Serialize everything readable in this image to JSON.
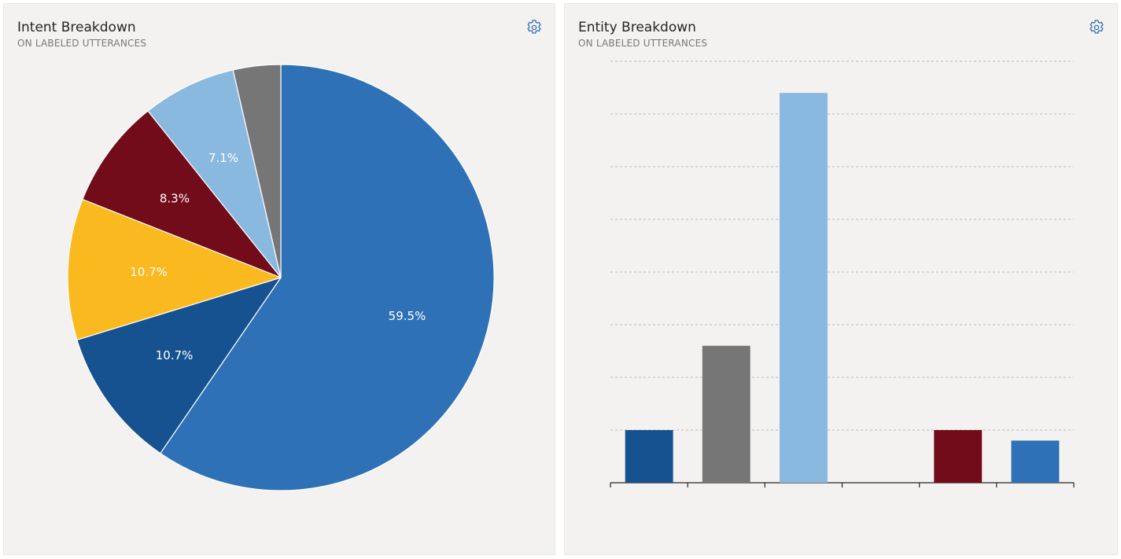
{
  "colors": {
    "panel_bg": "#f3f2f1",
    "settings_icon": "#2e6db4",
    "dark_blue": "#175290",
    "blue": "#2e71b6",
    "yellow": "#fbb920",
    "maroon": "#720b1a",
    "light_blue": "#8ab9e0",
    "gray": "#767676"
  },
  "intent_panel": {
    "title": "Intent Breakdown",
    "subtitle": "ON LABELED UTTERANCES",
    "settings_icon": "gear-icon"
  },
  "entity_panel": {
    "title": "Entity Breakdown",
    "subtitle": "ON LABELED UTTERANCES",
    "settings_icon": "gear-icon"
  },
  "chart_data": [
    {
      "type": "pie",
      "slices": [
        {
          "label": "59.5%",
          "value": 59.5,
          "color": "#2e71b6"
        },
        {
          "label": "10.7%",
          "value": 10.7,
          "color": "#175290"
        },
        {
          "label": "10.7%",
          "value": 10.7,
          "color": "#fbb920"
        },
        {
          "label": "8.3%",
          "value": 8.3,
          "color": "#720b1a"
        },
        {
          "label": "7.1%",
          "value": 7.1,
          "color": "#8ab9e0"
        },
        {
          "label": "",
          "value": 3.6,
          "color": "#767676"
        }
      ],
      "start": "12 o'clock",
      "direction": "clockwise"
    },
    {
      "type": "bar",
      "values": [
        1,
        2.6,
        7.4,
        0,
        1,
        0.8
      ],
      "colors": [
        "#175290",
        "#767676",
        "#8ab9e0",
        "#2e71b6",
        "#720b1a",
        "#2e71b6"
      ],
      "ylim": [
        0,
        8
      ],
      "grid": true,
      "grid_style": "dashed"
    }
  ]
}
